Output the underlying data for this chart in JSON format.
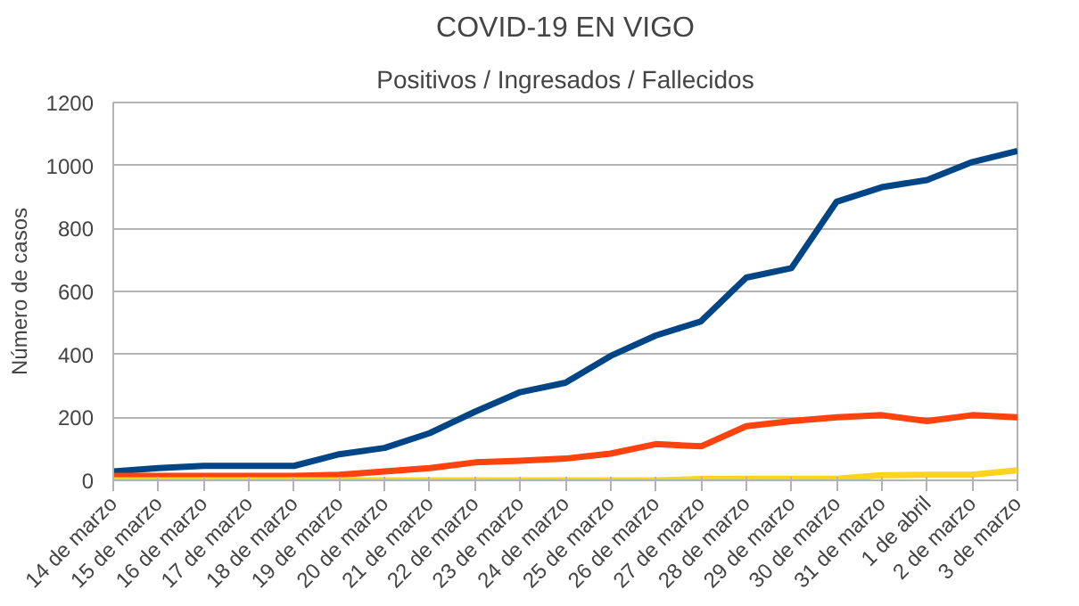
{
  "chart_data": {
    "type": "line",
    "title": "COVID-19 EN VIGO",
    "subtitle": "Positivos / Ingresados / Fallecidos",
    "ylabel": "Número de casos",
    "categories": [
      "14 de marzo",
      "15 de marzo",
      "16 de marzo",
      "17 de marzo",
      "18 de marzo",
      "19 de marzo",
      "20 de marzo",
      "21 de marzo",
      "22 de marzo",
      "23 de marzo",
      "24 de marzo",
      "25 de marzo",
      "26 de marzo",
      "27 de marzo",
      "28 de marzo",
      "29 de marzo",
      "30 de marzo",
      "31 de marzo",
      "1 de abril",
      "2 de marzo",
      "3 de marzo"
    ],
    "series": [
      {
        "color": "#004586",
        "values": [
          28,
          39,
          46,
          46,
          46,
          83,
          103,
          150,
          218,
          280,
          310,
          395,
          460,
          505,
          644,
          674,
          885,
          931,
          954,
          1011,
          1046
        ]
      },
      {
        "color": "#ff420e",
        "values": [
          14,
          14,
          14,
          14,
          14,
          18,
          28,
          39,
          57,
          62,
          69,
          85,
          115,
          108,
          172,
          188,
          200,
          207,
          188,
          207,
          200
        ]
      },
      {
        "color": "#ffd320",
        "values": [
          0,
          0,
          0,
          0,
          0,
          0,
          0,
          0,
          0,
          0,
          0,
          0,
          0,
          4,
          5,
          5,
          5,
          16,
          18,
          18,
          32
        ]
      }
    ],
    "ylim": [
      0,
      1200
    ],
    "yticks": [
      0,
      200,
      400,
      600,
      800,
      1000,
      1200
    ],
    "grid": "y"
  }
}
